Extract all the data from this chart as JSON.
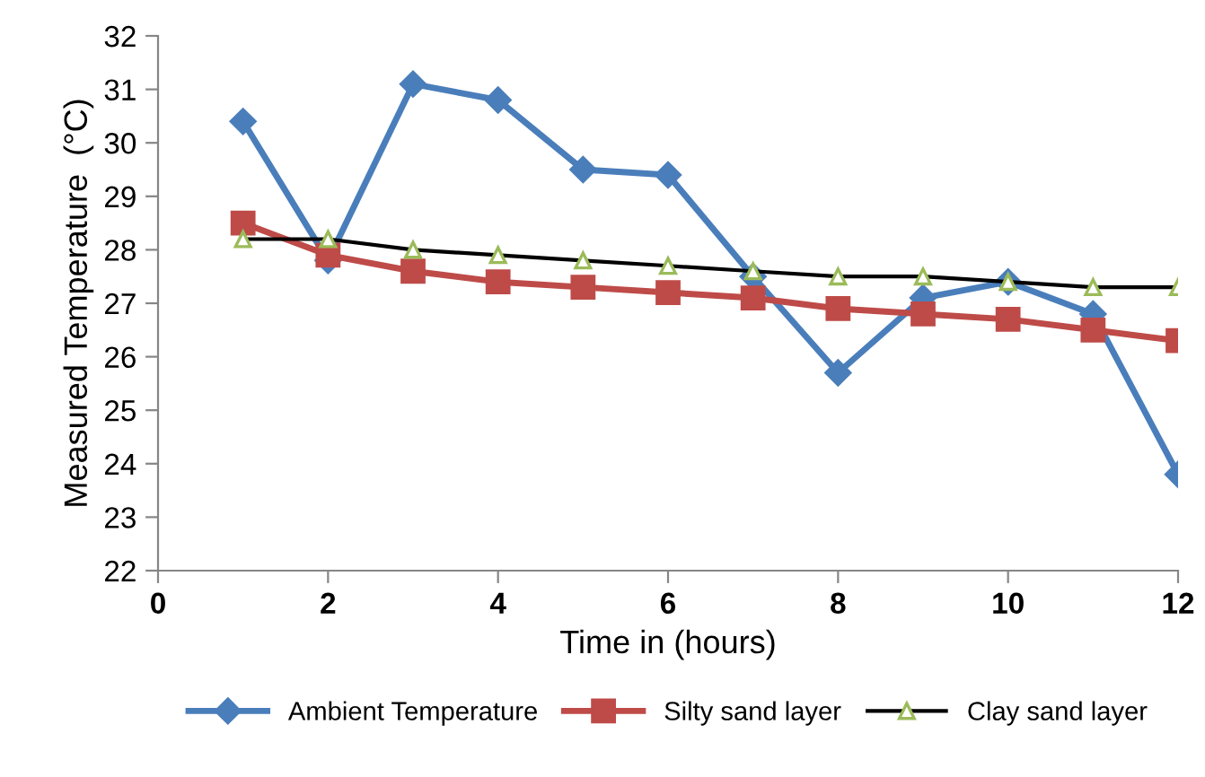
{
  "chart_data": {
    "type": "line",
    "xlabel": "Time in (hours)",
    "ylabel": "Measured Temperature  (°C)",
    "x": [
      1,
      2,
      3,
      4,
      5,
      6,
      7,
      8,
      9,
      10,
      11,
      12
    ],
    "xlim": [
      0,
      12
    ],
    "xticks": [
      0,
      2,
      4,
      6,
      8,
      10,
      12
    ],
    "ylim": [
      22,
      32
    ],
    "yticks": [
      22,
      23,
      24,
      25,
      26,
      27,
      28,
      29,
      30,
      31,
      32
    ],
    "grid": false,
    "legend": "bottom",
    "series": [
      {
        "name": "Ambient Temperature",
        "color": "#4a7ebb",
        "marker": "diamond",
        "values": [
          30.4,
          27.8,
          31.1,
          30.8,
          29.5,
          29.4,
          27.5,
          25.7,
          27.1,
          27.4,
          26.8,
          23.8
        ]
      },
      {
        "name": "Silty sand layer",
        "color": "#be4b48",
        "marker": "square",
        "values": [
          28.5,
          27.9,
          27.6,
          27.4,
          27.3,
          27.2,
          27.1,
          26.9,
          26.8,
          26.7,
          26.5,
          26.3
        ]
      },
      {
        "name": "Clay sand layer",
        "color": "#000000",
        "marker": "triangle",
        "values": [
          28.2,
          28.2,
          28.0,
          27.9,
          27.8,
          27.7,
          27.6,
          27.5,
          27.5,
          27.4,
          27.3,
          27.3
        ]
      }
    ]
  }
}
